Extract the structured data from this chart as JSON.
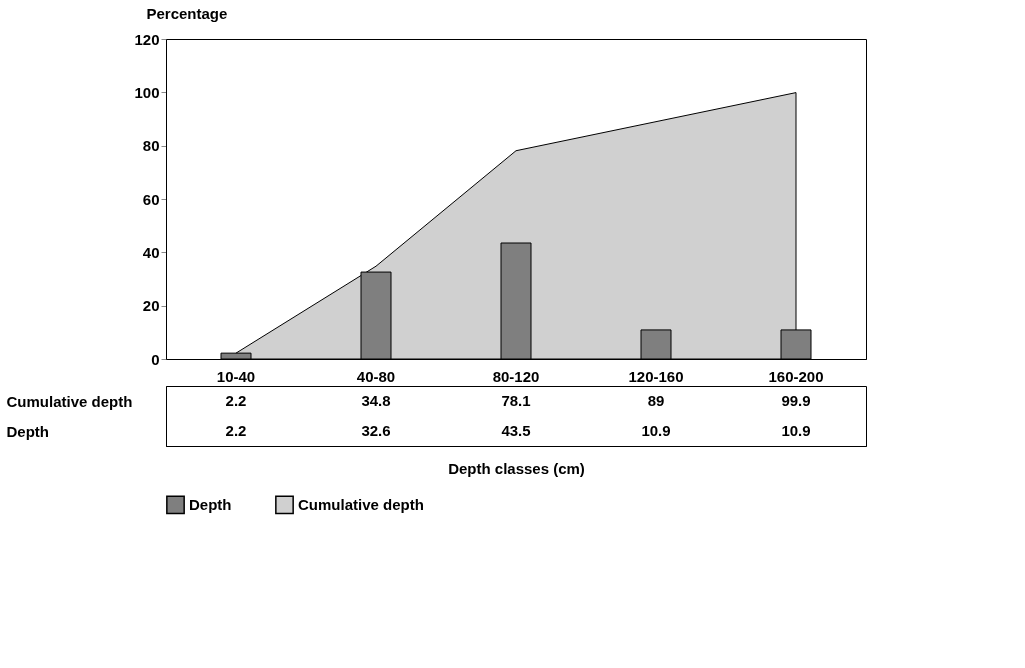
{
  "chart_data": {
    "type": "bar",
    "xlabel": "Depth classes (cm)",
    "ylabel": "Percentage",
    "categories": [
      "10-40",
      "40-80",
      "80-120",
      "120-160",
      "160-200"
    ],
    "series": [
      {
        "name": "Depth",
        "color": "#7f7f7f",
        "values": [
          2.2,
          32.6,
          43.5,
          10.9,
          10.9
        ]
      },
      {
        "name": "Cumulative depth",
        "type": "area",
        "color": "#d0d0d0",
        "values": [
          2.2,
          34.8,
          78.1,
          89,
          99.9
        ]
      }
    ],
    "ylim": [
      0,
      120
    ],
    "yticks": [
      0,
      20,
      40,
      60,
      80,
      100,
      120
    ],
    "grid": false,
    "legend": "bottom",
    "data_labels": true
  }
}
